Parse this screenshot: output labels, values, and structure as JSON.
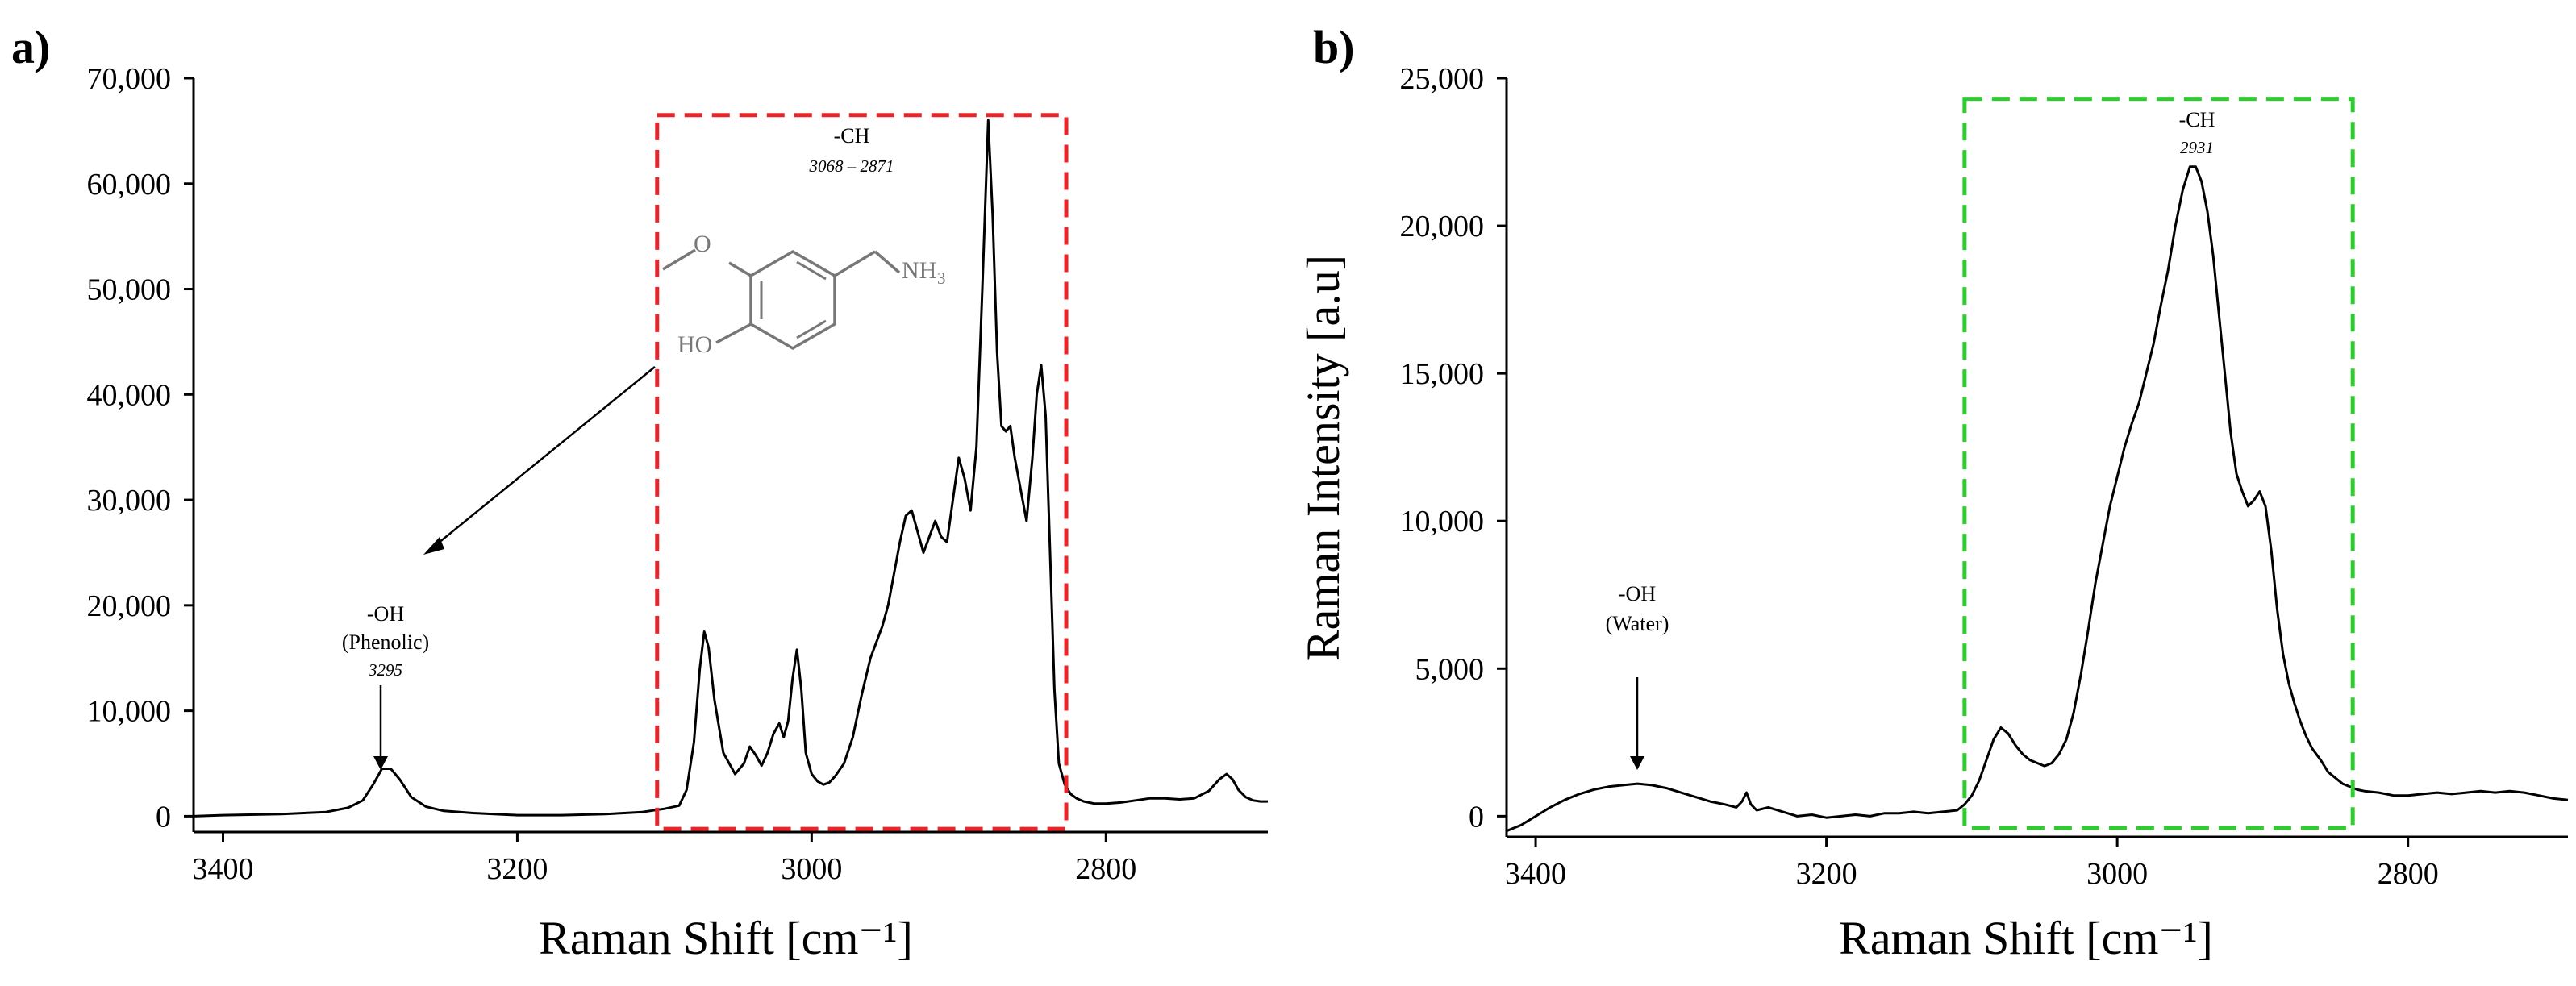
{
  "chart_data": [
    {
      "panel": "a)",
      "type": "line",
      "title": "",
      "xlabel": "Raman Shift [cm⁻¹]",
      "ylabel": "",
      "xlim": [
        3420,
        2690
      ],
      "ylim": [
        -1500,
        70000
      ],
      "x_ticks": [
        3400,
        3200,
        3000,
        2800
      ],
      "x_tick_labels": [
        "3400",
        "3200",
        "3000",
        "2800"
      ],
      "y_ticks": [
        0,
        10000,
        20000,
        30000,
        40000,
        50000,
        60000,
        70000
      ],
      "y_tick_labels": [
        "0",
        "10,000",
        "20,000",
        "30,000",
        "40,000",
        "50,000",
        "60,000",
        "70,000"
      ],
      "grid": false,
      "series": [
        {
          "name": "spectrum",
          "color": "#000000",
          "x": [
            3420,
            3400,
            3360,
            3330,
            3315,
            3305,
            3298,
            3292,
            3286,
            3280,
            3272,
            3262,
            3250,
            3230,
            3200,
            3170,
            3140,
            3115,
            3100,
            3090,
            3085,
            3080,
            3076,
            3073,
            3070,
            3066,
            3060,
            3052,
            3046,
            3042,
            3038,
            3034,
            3030,
            3026,
            3022,
            3019,
            3016,
            3013,
            3010,
            3007,
            3004,
            3000,
            2996,
            2992,
            2988,
            2984,
            2978,
            2972,
            2966,
            2960,
            2956,
            2952,
            2948,
            2944,
            2940,
            2936,
            2932,
            2928,
            2924,
            2920,
            2916,
            2912,
            2908,
            2904,
            2900,
            2896,
            2892,
            2888,
            2884,
            2880,
            2877,
            2874,
            2871,
            2868,
            2865,
            2862,
            2858,
            2854,
            2850,
            2847,
            2844,
            2841,
            2838,
            2835,
            2832,
            2828,
            2824,
            2820,
            2815,
            2808,
            2800,
            2790,
            2780,
            2770,
            2760,
            2750,
            2740,
            2730,
            2723,
            2718,
            2714,
            2710,
            2705,
            2700,
            2695,
            2690
          ],
          "y": [
            0,
            100,
            200,
            400,
            800,
            1500,
            3000,
            4500,
            4500,
            3500,
            1800,
            900,
            500,
            300,
            100,
            100,
            200,
            400,
            700,
            1000,
            2500,
            7000,
            14000,
            17500,
            16000,
            11000,
            6000,
            4000,
            5000,
            6600,
            5800,
            4800,
            6000,
            7800,
            8800,
            7500,
            9000,
            13000,
            15800,
            12000,
            6000,
            4000,
            3300,
            3000,
            3200,
            3800,
            5000,
            7500,
            11500,
            15000,
            16500,
            18000,
            20000,
            23000,
            26000,
            28500,
            29000,
            27000,
            25000,
            26500,
            28000,
            26500,
            26000,
            30000,
            34000,
            32000,
            29000,
            35000,
            50000,
            66000,
            57000,
            44000,
            37000,
            36500,
            37000,
            34000,
            31000,
            28000,
            34000,
            40000,
            42800,
            38000,
            25000,
            12000,
            5000,
            3000,
            2100,
            1700,
            1400,
            1200,
            1200,
            1300,
            1500,
            1700,
            1700,
            1600,
            1700,
            2400,
            3500,
            4000,
            3500,
            2500,
            1800,
            1500,
            1400,
            1400
          ]
        }
      ],
      "annotations": [
        {
          "lines": [
            "-OH",
            "(Phenolic)"
          ],
          "value": "3295",
          "arrow": "down",
          "x": 3290
        },
        {
          "lines": [
            "-CH"
          ],
          "value": "3068 – 2871"
        }
      ],
      "highlight_box": {
        "x_range": [
          3105,
          2827
        ],
        "y_range": [
          -1200,
          66500
        ],
        "color": "#e8262a",
        "style": "dashed"
      },
      "structure": {
        "labels": [
          "O",
          "NH",
          "3",
          "HO"
        ]
      }
    },
    {
      "panel": "b)",
      "type": "line",
      "title": "",
      "xlabel": "Raman Shift [cm⁻¹]",
      "ylabel": "Raman Intensity [a.u]",
      "xlim": [
        3420,
        2690
      ],
      "ylim": [
        -700,
        25000
      ],
      "x_ticks": [
        3400,
        3200,
        3000,
        2800
      ],
      "x_tick_labels": [
        "3400",
        "3200",
        "3000",
        "2800"
      ],
      "y_ticks": [
        0,
        5000,
        10000,
        15000,
        20000,
        25000
      ],
      "y_tick_labels": [
        "0",
        "5,000",
        "10,000",
        "15,000",
        "20,000",
        "25,000"
      ],
      "grid": false,
      "series": [
        {
          "name": "spectrum",
          "color": "#000000",
          "x": [
            3420,
            3410,
            3400,
            3390,
            3380,
            3370,
            3360,
            3350,
            3340,
            3330,
            3320,
            3310,
            3300,
            3290,
            3280,
            3270,
            3262,
            3258,
            3255,
            3252,
            3248,
            3240,
            3230,
            3220,
            3210,
            3200,
            3190,
            3180,
            3170,
            3160,
            3150,
            3140,
            3130,
            3120,
            3110,
            3105,
            3100,
            3095,
            3090,
            3085,
            3080,
            3075,
            3070,
            3065,
            3060,
            3055,
            3050,
            3045,
            3040,
            3035,
            3030,
            3025,
            3020,
            3015,
            3010,
            3005,
            3000,
            2995,
            2990,
            2985,
            2980,
            2975,
            2970,
            2965,
            2960,
            2955,
            2950,
            2946,
            2942,
            2938,
            2934,
            2930,
            2926,
            2922,
            2918,
            2914,
            2910,
            2906,
            2902,
            2898,
            2894,
            2890,
            2886,
            2882,
            2878,
            2874,
            2870,
            2866,
            2860,
            2855,
            2850,
            2845,
            2840,
            2835,
            2830,
            2820,
            2810,
            2800,
            2790,
            2780,
            2770,
            2760,
            2750,
            2740,
            2730,
            2720,
            2710,
            2700,
            2690
          ],
          "y": [
            -500,
            -300,
            0,
            300,
            550,
            750,
            900,
            1000,
            1050,
            1100,
            1050,
            950,
            800,
            650,
            500,
            400,
            300,
            500,
            800,
            400,
            200,
            300,
            150,
            0,
            50,
            -50,
            0,
            50,
            0,
            100,
            100,
            150,
            100,
            150,
            200,
            400,
            700,
            1200,
            1900,
            2600,
            3000,
            2800,
            2400,
            2100,
            1900,
            1800,
            1700,
            1800,
            2100,
            2600,
            3500,
            4800,
            6300,
            7900,
            9200,
            10500,
            11500,
            12500,
            13300,
            14000,
            15000,
            16000,
            17300,
            18500,
            20000,
            21200,
            22000,
            22000,
            21500,
            20500,
            19000,
            17000,
            15000,
            13000,
            11600,
            11000,
            10500,
            10700,
            11000,
            10500,
            9000,
            7000,
            5500,
            4500,
            3800,
            3200,
            2700,
            2300,
            1900,
            1500,
            1300,
            1100,
            1000,
            900,
            850,
            800,
            700,
            700,
            750,
            800,
            750,
            800,
            850,
            800,
            850,
            800,
            700,
            600,
            550
          ]
        }
      ],
      "annotations": [
        {
          "lines": [
            "-OH",
            "(Water)"
          ],
          "value": "",
          "arrow": "down",
          "x": 3320
        },
        {
          "lines": [
            "-CH"
          ],
          "value": "2931"
        }
      ],
      "highlight_box": {
        "x_range": [
          3105,
          2838
        ],
        "y_range": [
          -400,
          24300
        ],
        "color": "#2ecc2e",
        "style": "dashed"
      }
    }
  ]
}
